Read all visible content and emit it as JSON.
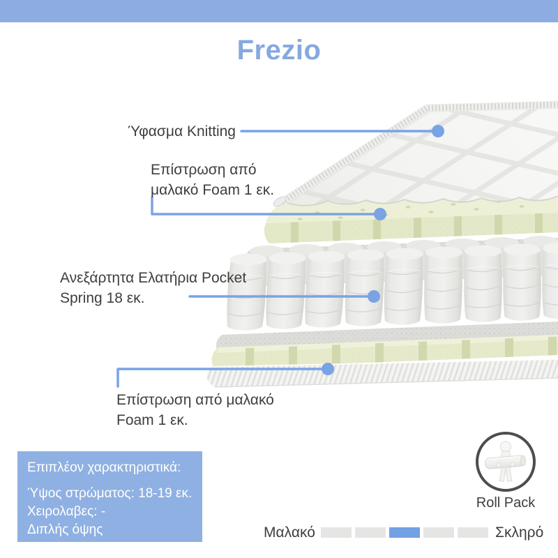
{
  "header": {
    "title": "Frezio"
  },
  "callouts": {
    "knitting": {
      "label": "Ύφασμα Knitting"
    },
    "foam_top": {
      "line1": "Επίστρωση από",
      "line2": "μαλακό Foam 1 εκ."
    },
    "springs": {
      "line1": "Ανεξάρτητα Ελατήρια Pocket",
      "line2": "Spring 18 εκ."
    },
    "foam_bottom": {
      "line1": "Επίστρωση από μαλακό",
      "line2": "Foam 1 εκ."
    }
  },
  "features_panel": {
    "title": "Επιπλέον χαρακτηριστικά:",
    "items": [
      "Ύψος στρώματος: 18-19 εκ.",
      "Χειρολαβες: -",
      "Διπλής όψης"
    ]
  },
  "roll_pack": {
    "label": "Roll Pack"
  },
  "firmness": {
    "soft_label": "Μαλακό",
    "hard_label": "Σκληρό",
    "levels": 5,
    "active_index": 2
  },
  "colors": {
    "banner": "#8cace2",
    "title_text": "#85a9de",
    "body_text": "#3e3e3e",
    "accent": "#7aa3e6",
    "panel_bg": "#8fb0e2",
    "panel_text": "#ffffff",
    "firmness_active": "#74a0e4",
    "firmness_inactive": "#e5e5e4",
    "badge_border": "#4d4d4d"
  }
}
